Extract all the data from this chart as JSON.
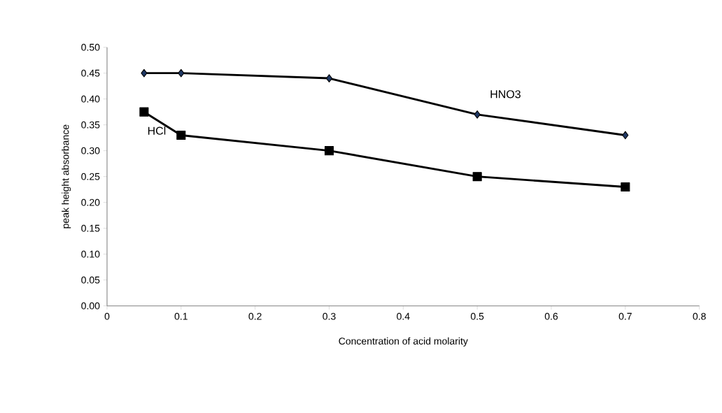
{
  "chart_data": {
    "type": "line",
    "xlabel": "Concentration of acid molarity",
    "ylabel": "peak height absorbance",
    "xlim": [
      0,
      0.8
    ],
    "xticks": [
      0,
      0.1,
      0.2,
      0.3,
      0.4,
      0.5,
      0.6,
      0.7,
      0.8
    ],
    "ylim": [
      0,
      0.5
    ],
    "yticks": [
      {
        "value": 0,
        "label": "0.00"
      },
      {
        "value": 0.05,
        "label": "0.05"
      },
      {
        "value": 0.1,
        "label": "0.10"
      },
      {
        "value": 0.15,
        "label": "0.15"
      },
      {
        "value": 0.2,
        "label": "0.20"
      },
      {
        "value": 0.25,
        "label": "0.25"
      },
      {
        "value": 0.3,
        "label": "0.30"
      },
      {
        "value": 0.35,
        "label": "0.35"
      },
      {
        "value": 0.4,
        "label": "0.40"
      },
      {
        "value": 0.45,
        "label": "0.45"
      },
      {
        "value": 0.5,
        "label": "0.50"
      }
    ],
    "grid": false,
    "line_style": "solid",
    "x": [
      0.05,
      0.1,
      0.3,
      0.5,
      0.7
    ],
    "series": [
      {
        "name": "HNO3",
        "color": "#000000",
        "marker": "diamond",
        "values": [
          0.45,
          0.45,
          0.44,
          0.37,
          0.33
        ]
      },
      {
        "name": "HCl",
        "color": "#000000",
        "marker": "square",
        "values": [
          0.375,
          0.33,
          0.3,
          0.25,
          0.23
        ]
      }
    ]
  }
}
